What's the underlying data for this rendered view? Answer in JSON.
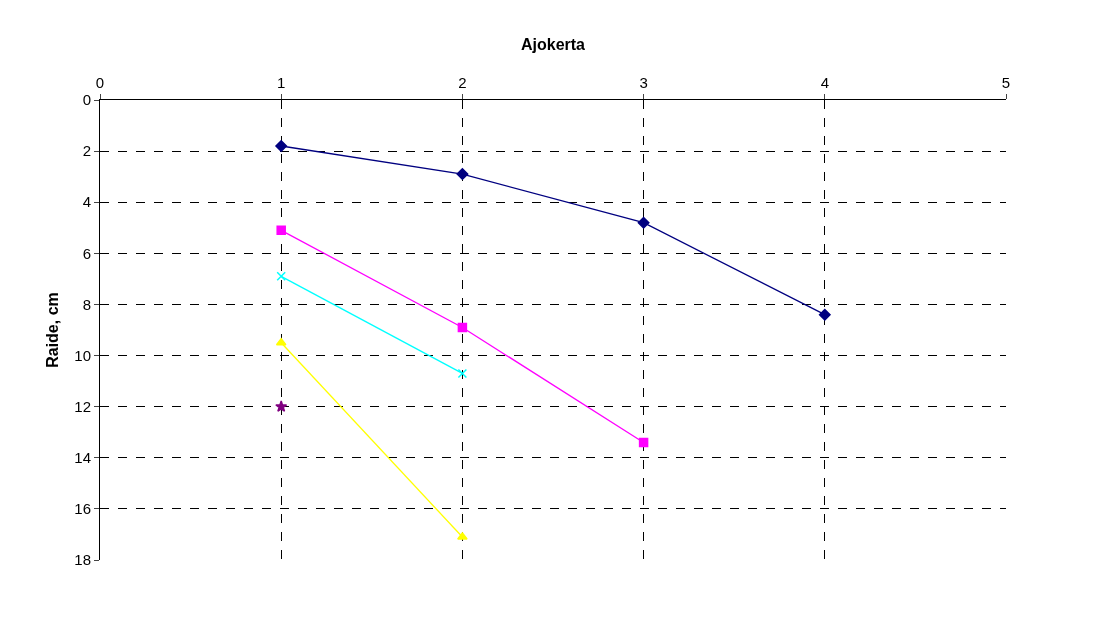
{
  "chart_data": {
    "type": "line",
    "xlabel": "Ajokerta",
    "ylabel": "Raide, cm",
    "xlim": [
      0,
      5
    ],
    "xticks": [
      0,
      1,
      2,
      3,
      4,
      5
    ],
    "ylim": [
      18,
      0
    ],
    "yticks": [
      0,
      2,
      4,
      6,
      8,
      10,
      12,
      14,
      16,
      18
    ],
    "grid": true,
    "line_style": "solid",
    "series": [
      {
        "color": "#000080",
        "marker": "diamond",
        "x": [
          1,
          2,
          3,
          4
        ],
        "values": [
          1.8,
          2.9,
          4.8,
          8.4
        ]
      },
      {
        "color": "#ff00ff",
        "marker": "square",
        "x": [
          1,
          2,
          3
        ],
        "values": [
          5.1,
          8.9,
          13.4
        ]
      },
      {
        "color": "#ffff00",
        "marker": "triangle",
        "x": [
          1,
          2
        ],
        "values": [
          9.5,
          17.1
        ]
      },
      {
        "color": "#00ffff",
        "marker": "cross",
        "x": [
          1,
          2
        ],
        "values": [
          6.9,
          10.7
        ]
      },
      {
        "color": "#800080",
        "marker": "star",
        "x": [
          1
        ],
        "values": [
          12.0
        ]
      }
    ]
  }
}
